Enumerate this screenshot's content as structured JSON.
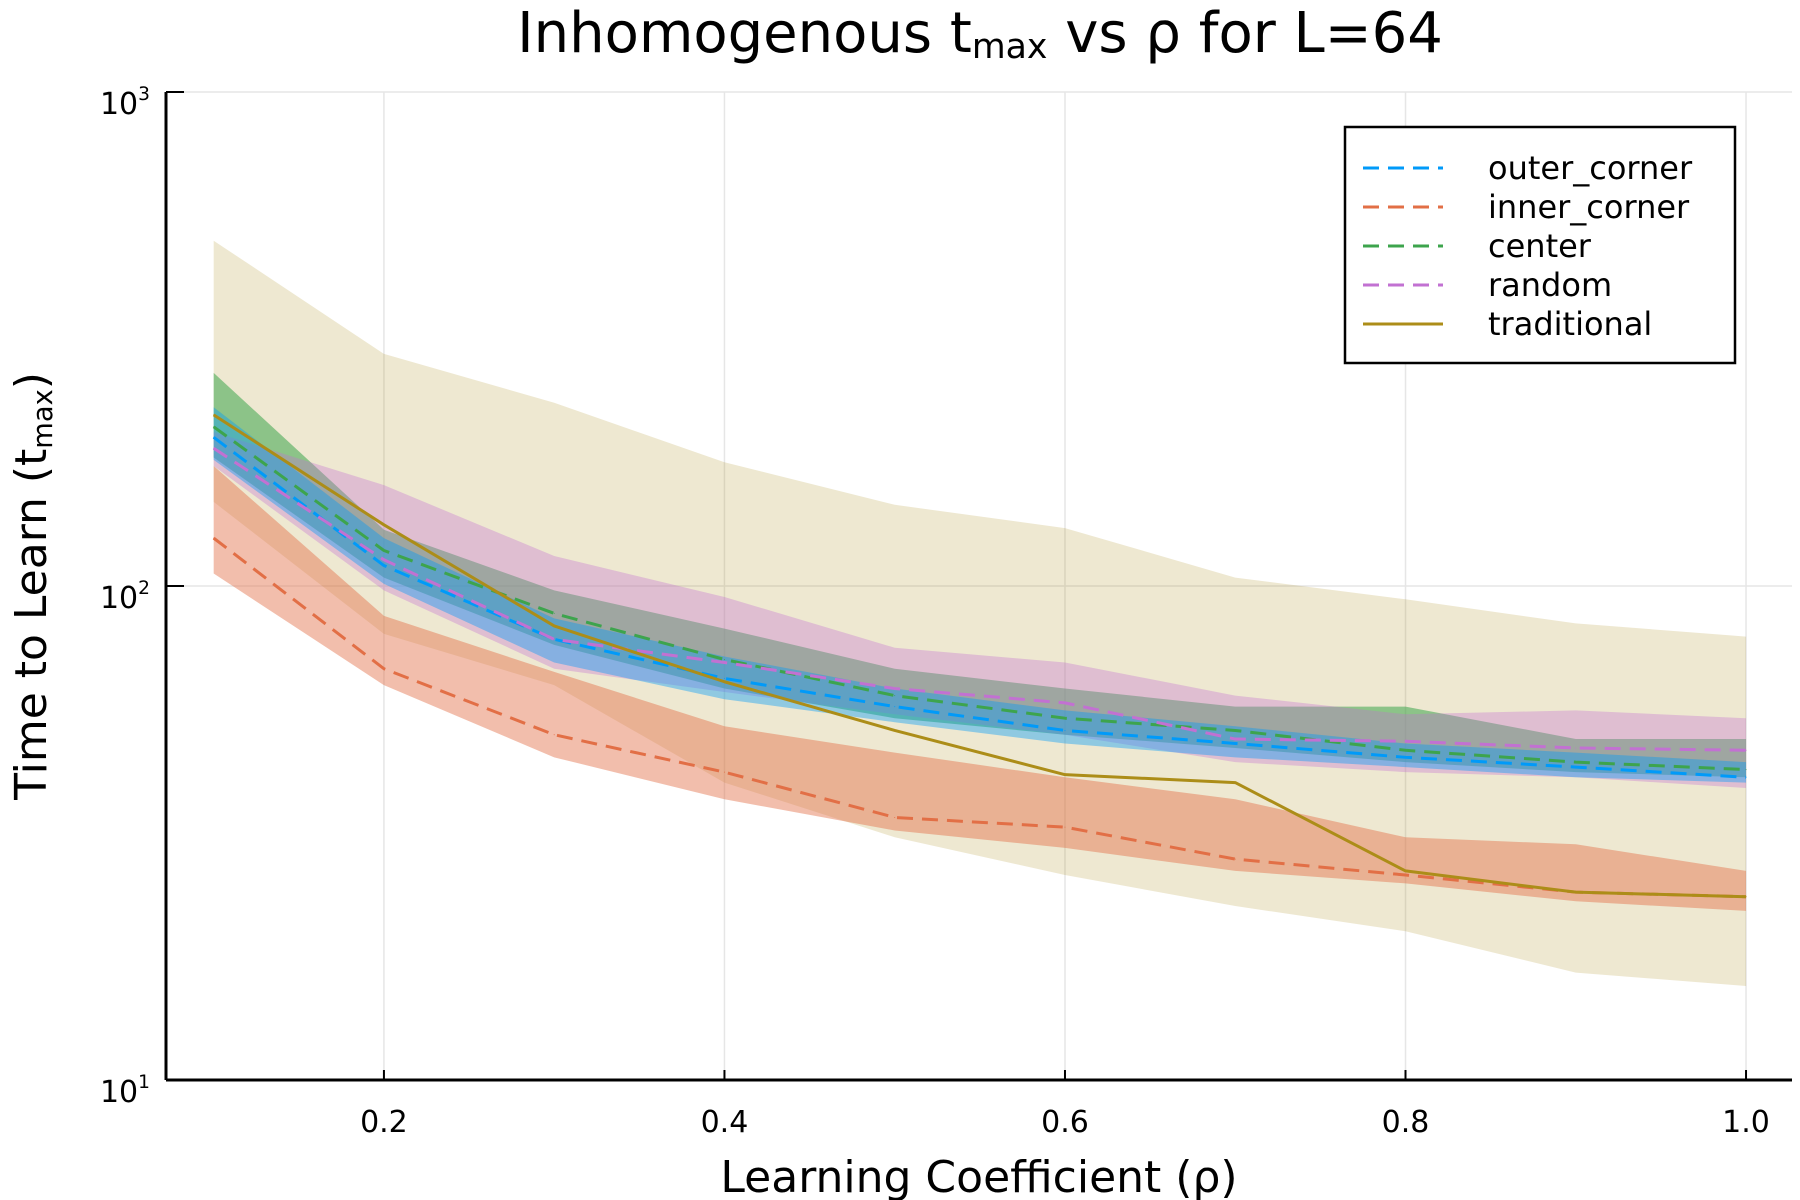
{
  "chart_data": {
    "type": "line",
    "title": {
      "main": "Inhomogenous t",
      "subscript": "max",
      "rest": " vs ρ for L=64"
    },
    "xlabel": "Learning Coefficient (ρ)",
    "ylabel": {
      "main": "Time to Learn (t",
      "subscript": "max",
      "rest": ")"
    },
    "yscale": "log",
    "xlim": [
      0.072,
      1.027
    ],
    "ylim": [
      10,
      1000
    ],
    "xticks": [
      {
        "value": 0.2,
        "label": "0.2"
      },
      {
        "value": 0.4,
        "label": "0.4"
      },
      {
        "value": 0.6,
        "label": "0.6"
      },
      {
        "value": 0.8,
        "label": "0.8"
      },
      {
        "value": 1.0,
        "label": "1.0"
      }
    ],
    "yticks": [
      {
        "value": 10,
        "base": "10",
        "exp": "1"
      },
      {
        "value": 100,
        "base": "10",
        "exp": "2"
      },
      {
        "value": 1000,
        "base": "10",
        "exp": "3"
      }
    ],
    "grid": true,
    "legend_position": "top-right",
    "x": [
      0.1,
      0.2,
      0.3,
      0.4,
      0.5,
      0.6,
      0.7,
      0.8,
      0.9,
      1.0
    ],
    "series": [
      {
        "name": "outer_corner",
        "color": "#009af9",
        "dash": "dashed",
        "values": [
          200,
          110,
          78,
          65,
          57,
          51,
          48,
          45,
          43,
          41
        ],
        "lower": [
          180,
          101,
          70,
          59,
          53,
          48,
          45,
          43,
          41,
          40
        ],
        "upper": [
          230,
          125,
          86,
          72,
          62,
          56,
          52,
          48,
          46,
          44
        ]
      },
      {
        "name": "inner_corner",
        "color": "#e26f46",
        "dash": "dashed",
        "values": [
          125,
          68,
          50,
          42,
          34,
          32.5,
          28,
          26,
          24,
          23.5
        ],
        "lower": [
          106,
          63,
          45,
          37,
          32,
          29.5,
          26.5,
          25,
          23,
          22
        ],
        "upper": [
          175,
          87,
          67,
          52,
          46,
          41,
          37,
          31,
          30,
          26.5
        ]
      },
      {
        "name": "center",
        "color": "#3da44d",
        "dash": "dashed",
        "values": [
          210,
          118,
          88,
          71,
          60,
          54,
          51,
          46.5,
          44,
          42.5
        ],
        "lower": [
          182,
          104,
          76,
          62,
          54,
          50,
          47,
          44,
          42,
          41
        ],
        "upper": [
          270,
          130,
          98,
          82,
          68,
          62,
          57,
          57,
          49,
          49
        ]
      },
      {
        "name": "random",
        "color": "#c271d2",
        "dash": "dashed",
        "values": [
          190,
          113,
          78,
          70,
          62,
          58,
          49,
          48.5,
          47,
          46.5
        ],
        "lower": [
          175,
          98,
          68,
          61,
          55,
          50,
          44,
          42,
          41,
          39
        ],
        "upper": [
          205,
          160,
          115,
          95,
          75,
          70,
          60,
          55,
          56,
          54
        ]
      },
      {
        "name": "traditional",
        "color": "#ac8d18",
        "dash": "solid",
        "values": [
          222,
          133,
          83,
          64,
          51,
          41.5,
          40,
          26.5,
          24,
          23.5
        ],
        "lower": [
          148,
          80,
          63,
          40,
          31,
          26,
          22.5,
          20,
          16.5,
          15.5
        ],
        "upper": [
          500,
          295,
          235,
          178,
          146,
          131,
          104,
          94,
          84,
          79
        ]
      }
    ]
  }
}
